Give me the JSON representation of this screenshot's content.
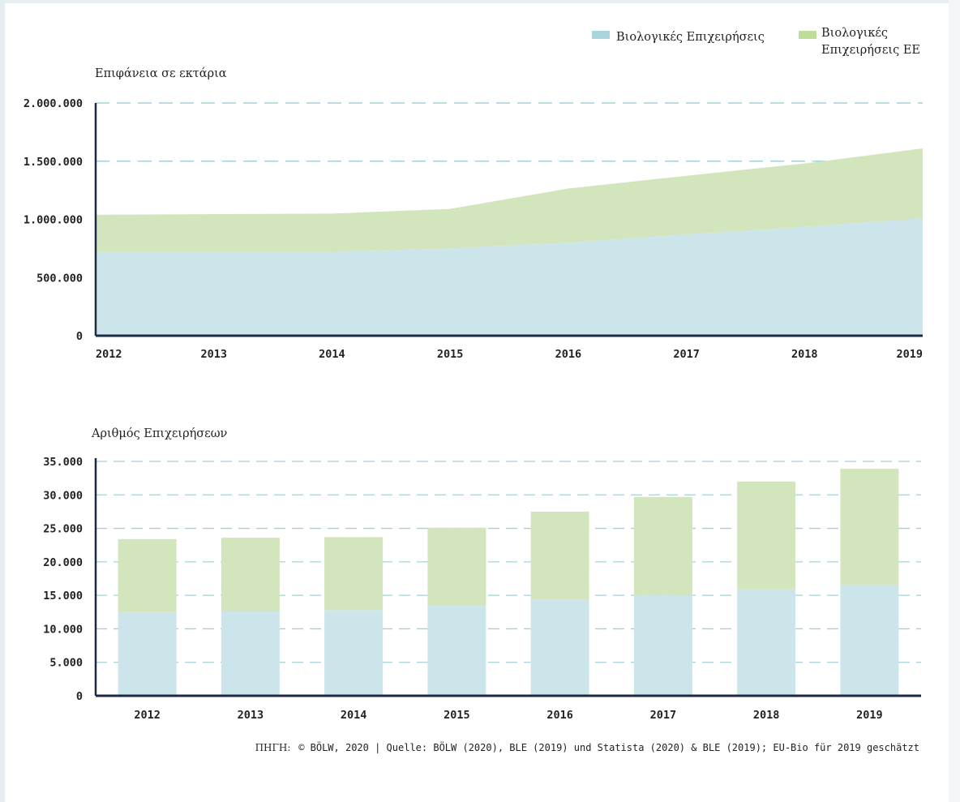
{
  "legend": {
    "items": [
      {
        "label": "Βιολογικές Επιχειρήσεις",
        "color": "#a9d4dd"
      },
      {
        "label_lines": [
          "Βιολογικές",
          "Επιχειρήσεις ΕΕ"
        ],
        "color": "#c0dc9a"
      }
    ]
  },
  "colors": {
    "bio": "#cbe5ea",
    "eu": "#d3e5bc",
    "grid": "#a6d0d9",
    "axis": "#1c2a44",
    "text": "#222222"
  },
  "chart_data": [
    {
      "type": "area",
      "title": "Επιφάνεια σε εκτάρια",
      "stacked": true,
      "x": [
        2012,
        2013,
        2014,
        2015,
        2016,
        2017,
        2018,
        2019
      ],
      "ylim": [
        0,
        2000000
      ],
      "yticks": [
        0,
        500000,
        1000000,
        1500000,
        2000000
      ],
      "ytick_labels": [
        "0",
        "500.000",
        "1.000.000",
        "1.500.000",
        "2.000.000"
      ],
      "grid": true,
      "series": [
        {
          "name": "Βιολογικές Επιχειρήσεις",
          "values": [
            720000,
            720000,
            720000,
            750000,
            800000,
            870000,
            935000,
            1010000
          ]
        },
        {
          "name": "Βιολογικές Επιχειρήσεις ΕΕ",
          "values": [
            320000,
            325000,
            330000,
            340000,
            465000,
            505000,
            545000,
            600000
          ]
        }
      ]
    },
    {
      "type": "bar",
      "title": "Αριθμός Επιχειρήσεων",
      "stacked": true,
      "categories": [
        "2012",
        "2013",
        "2014",
        "2015",
        "2016",
        "2017",
        "2018",
        "2019"
      ],
      "ylim": [
        0,
        35000
      ],
      "yticks": [
        0,
        5000,
        10000,
        15000,
        20000,
        25000,
        30000,
        35000
      ],
      "ytick_labels": [
        "0",
        "5.000",
        "10.000",
        "15.000",
        "20.000",
        "25.000",
        "30.000",
        "35.000"
      ],
      "grid": true,
      "series": [
        {
          "name": "Βιολογικές Επιχειρήσεις",
          "values": [
            12500,
            12600,
            12800,
            13500,
            14400,
            15000,
            15900,
            16600
          ]
        },
        {
          "name": "Βιολογικές Επιχειρήσεις ΕΕ",
          "values": [
            10900,
            11000,
            10900,
            11600,
            13100,
            14700,
            16100,
            17300
          ]
        }
      ]
    }
  ],
  "source": {
    "prefix": "ΠΗΓΗ:",
    "text": "© BÖLW, 2020 | Quelle: BÖLW (2020), BLE (2019) und Statista (2020) & BLE (2019); EU-Bio für 2019 geschätzt"
  }
}
